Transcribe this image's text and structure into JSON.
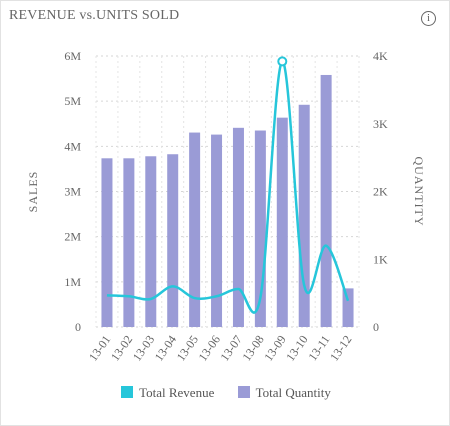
{
  "chart_data": {
    "type": "bar+line",
    "title": "REVENUE vs.UNITS SOLD",
    "categories": [
      "13-01",
      "13-02",
      "13-03",
      "13-04",
      "13-05",
      "13-06",
      "13-07",
      "13-08",
      "13-09",
      "13-10",
      "13-11",
      "13-12"
    ],
    "series": [
      {
        "name": "Total Revenue",
        "type": "line",
        "axis": "left",
        "color": "#26c6da",
        "values": [
          700000,
          680000,
          620000,
          900000,
          640000,
          680000,
          840000,
          650000,
          5880000,
          920000,
          1800000,
          580000
        ]
      },
      {
        "name": "Total Quantity",
        "type": "bar",
        "axis": "right",
        "color": "#9a9bd6",
        "values": [
          2490,
          2490,
          2520,
          2550,
          2870,
          2840,
          2940,
          2900,
          3090,
          3280,
          3720,
          570
        ]
      }
    ],
    "highlight_point": {
      "series": "Total Revenue",
      "category": "13-09"
    },
    "ylabel_left": "SALES",
    "ylabel_right": "QUANTITY",
    "ylim_left": [
      0,
      6000000
    ],
    "ylim_right": [
      0,
      4000
    ],
    "yticks_left": [
      "0",
      "1M",
      "2M",
      "3M",
      "4M",
      "5M",
      "6M"
    ],
    "yticks_right": [
      "0",
      "1K",
      "2K",
      "3K",
      "4K"
    ],
    "grid": true,
    "legend_position": "bottom"
  },
  "info_icon_glyph": "i"
}
